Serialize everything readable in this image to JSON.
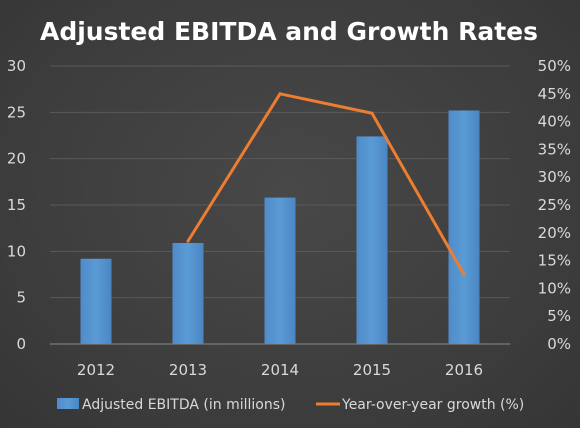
{
  "chart_data": {
    "type": "bar",
    "title": "Adjusted EBITDA and Growth Rates",
    "categories": [
      "2012",
      "2013",
      "2014",
      "2015",
      "2016"
    ],
    "series": [
      {
        "name": "Adjusted EBITDA (in millions)",
        "type": "bar",
        "axis": "left",
        "color": "#5b9bd5",
        "values": [
          9.2,
          10.9,
          15.8,
          22.4,
          25.2
        ]
      },
      {
        "name": "Year-over-year growth (%)",
        "type": "line",
        "axis": "right",
        "color": "#ed7d31",
        "values": [
          null,
          18.5,
          45,
          41.5,
          12.5
        ]
      }
    ],
    "y_left": {
      "ylim": [
        0,
        30
      ],
      "ticks": [
        "0",
        "5",
        "10",
        "15",
        "20",
        "25",
        "30"
      ]
    },
    "y_right": {
      "ylim": [
        0,
        50
      ],
      "ticks": [
        "0%",
        "5%",
        "10%",
        "15%",
        "20%",
        "25%",
        "30%",
        "35%",
        "40%",
        "45%",
        "50%"
      ]
    },
    "grid": true,
    "legend_position": "bottom"
  }
}
